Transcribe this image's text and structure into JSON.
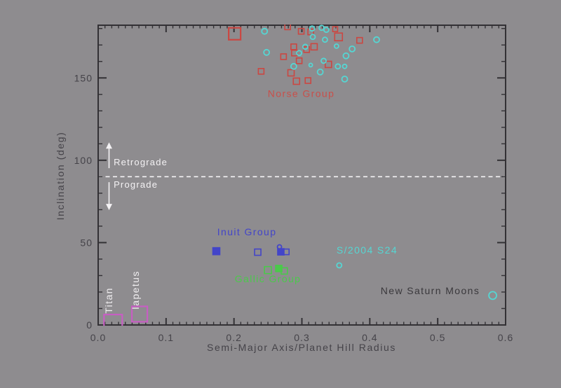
{
  "figure": {
    "background": "#8e8c8f",
    "frame_color": "#333135",
    "text_color": "#454349"
  },
  "chart_data": {
    "type": "scatter",
    "title": "",
    "xlabel": "Semi-Major Axis/Planet Hill Radius",
    "ylabel": "Inclination (deg)",
    "xlim": [
      0,
      0.6
    ],
    "ylim": [
      0,
      182
    ],
    "grid": false,
    "legend_position": "none",
    "x_major_ticks": [
      0,
      0.1,
      0.2,
      0.3,
      0.4,
      0.5,
      0.6
    ],
    "x_tick_labels": [
      "0.0",
      "0.1",
      "0.2",
      "0.3",
      "0.4",
      "0.5",
      "0.6"
    ],
    "x_minor_step": 0.01,
    "y_major_ticks": [
      0,
      50,
      100,
      150
    ],
    "y_tick_labels": [
      "0",
      "50",
      "100",
      "150"
    ],
    "y_minor_step": 10,
    "reference_line": {
      "y": 90,
      "style": "dashed",
      "color": "#f4f2f4",
      "label": "prograde/retrograde boundary"
    },
    "direction_arrows": [
      {
        "id": "retrograde-arrow",
        "x": 0.016,
        "y_tail": 95.2,
        "y_head": 110.9,
        "head": "up",
        "color": "#f4f2f4"
      },
      {
        "id": "prograde-arrow",
        "x": 0.016,
        "y_tail": 86.7,
        "y_head": 69.7,
        "head": "down",
        "color": "#f4f2f4"
      }
    ],
    "annotations": [
      {
        "id": "norse-group-label",
        "text": "Norse Group",
        "x": 0.299,
        "y": 138.5,
        "color": "#c94f4a",
        "anchor": "middle",
        "rotate": 0,
        "size": 14
      },
      {
        "id": "inuit-group-label",
        "text": "Inuit Group",
        "x": 0.219,
        "y": 54.4,
        "color": "#4345c9",
        "anchor": "middle",
        "rotate": 0,
        "size": 14
      },
      {
        "id": "gallic-group-label",
        "text": "Gallic Group",
        "x": 0.25,
        "y": 25.9,
        "color": "#4bc94b",
        "anchor": "middle",
        "rotate": 0,
        "size": 14
      },
      {
        "id": "s2004-s24-label",
        "text": "S/2004 S24",
        "x": 0.396,
        "y": 43.3,
        "color": "#55d6d3",
        "anchor": "middle",
        "rotate": 0,
        "size": 14
      },
      {
        "id": "new-saturn-moons-label",
        "text": "New Saturn Moons",
        "x": 0.489,
        "y": 18.7,
        "color": "#3a383c",
        "anchor": "middle",
        "rotate": 0,
        "size": 14
      },
      {
        "id": "retrograde-label",
        "text": "Retrograde",
        "x": 0.0228,
        "y": 96.9,
        "color": "#f4f2f4",
        "anchor": "start",
        "rotate": 0,
        "size": 13
      },
      {
        "id": "prograde-label",
        "text": "Prograde",
        "x": 0.0228,
        "y": 83.3,
        "color": "#f4f2f4",
        "anchor": "start",
        "rotate": 0,
        "size": 13
      },
      {
        "id": "titan-label",
        "text": "Titan",
        "x": 0.0207,
        "y": 14.9,
        "color": "#f0eef0",
        "anchor": "middle",
        "rotate": -90,
        "size": 13
      },
      {
        "id": "iapetus-label",
        "text": "Iapetus",
        "x": 0.06,
        "y": 21.2,
        "color": "#f0eef0",
        "anchor": "middle",
        "rotate": -90,
        "size": 13
      }
    ],
    "series": [
      {
        "id": "norse-group-squares",
        "name": "Norse Group (red squares, retrograde irregulars)",
        "symbol": "square",
        "filled": false,
        "color": "#cb4742",
        "points": [
          [
            0.201,
            176.8,
            17
          ],
          [
            0.279,
            181.0,
            8
          ],
          [
            0.299,
            178.3,
            8
          ],
          [
            0.313,
            177.9,
            8
          ],
          [
            0.349,
            179.6,
            7
          ],
          [
            0.354,
            174.9,
            11
          ],
          [
            0.385,
            172.8,
            8
          ],
          [
            0.288,
            168.9,
            8
          ],
          [
            0.307,
            167.2,
            8
          ],
          [
            0.318,
            168.9,
            9
          ],
          [
            0.289,
            165.1,
            8
          ],
          [
            0.273,
            162.9,
            8
          ],
          [
            0.296,
            160.4,
            8
          ],
          [
            0.339,
            158.2,
            9
          ],
          [
            0.24,
            154.0,
            8
          ],
          [
            0.284,
            153.1,
            9
          ],
          [
            0.292,
            148.0,
            9
          ],
          [
            0.309,
            148.4,
            8
          ]
        ]
      },
      {
        "id": "norse-group-circles",
        "name": "Norse Group (cyan circles, retrograde irregulars)",
        "symbol": "circle",
        "filled": false,
        "color": "#55d6d3",
        "points": [
          [
            0.245,
            178.3,
            8
          ],
          [
            0.315,
            180.0,
            7
          ],
          [
            0.329,
            180.4,
            7
          ],
          [
            0.336,
            179.2,
            7
          ],
          [
            0.316,
            174.9,
            7
          ],
          [
            0.334,
            173.2,
            7
          ],
          [
            0.41,
            173.2,
            8
          ],
          [
            0.248,
            165.5,
            8
          ],
          [
            0.305,
            168.9,
            7
          ],
          [
            0.296,
            165.1,
            7
          ],
          [
            0.374,
            167.6,
            8
          ],
          [
            0.351,
            169.3,
            6
          ],
          [
            0.365,
            163.4,
            8
          ],
          [
            0.288,
            157.0,
            8
          ],
          [
            0.332,
            160.4,
            7
          ],
          [
            0.313,
            157.8,
            5
          ],
          [
            0.353,
            157.0,
            7
          ],
          [
            0.363,
            157.0,
            6
          ],
          [
            0.327,
            153.6,
            8
          ],
          [
            0.363,
            149.3,
            8
          ]
        ]
      },
      {
        "id": "inuit-group-open-squares",
        "name": "Inuit Group (open squares)",
        "symbol": "square",
        "filled": false,
        "color": "#4345c9",
        "points": [
          [
            0.235,
            44.2,
            9
          ],
          [
            0.277,
            44.4,
            8
          ]
        ]
      },
      {
        "id": "inuit-group-filled-squares",
        "name": "Inuit Group (filled squares)",
        "symbol": "square",
        "filled": true,
        "color": "#4345c9",
        "points": [
          [
            0.174,
            44.8,
            10
          ],
          [
            0.269,
            44.4,
            9
          ]
        ]
      },
      {
        "id": "inuit-group-circle",
        "name": "Inuit Group (small circle)",
        "symbol": "circle",
        "filled": false,
        "color": "#4345c9",
        "points": [
          [
            0.267,
            47.4,
            6
          ]
        ]
      },
      {
        "id": "gallic-group-open-squares",
        "name": "Gallic Group (open squares)",
        "symbol": "square",
        "filled": false,
        "color": "#4bc94b",
        "points": [
          [
            0.25,
            33.3,
            10
          ],
          [
            0.274,
            32.8,
            9
          ]
        ]
      },
      {
        "id": "gallic-group-filled-square",
        "name": "Gallic Group (filled square)",
        "symbol": "square",
        "filled": true,
        "color": "#4bc94b",
        "points": [
          [
            0.266,
            34.3,
            9
          ]
        ]
      },
      {
        "id": "s2004-s24-point",
        "name": "S/2004 S24",
        "symbol": "circle",
        "filled": false,
        "color": "#55d6d3",
        "points": [
          [
            0.355,
            36.2,
            7
          ]
        ]
      },
      {
        "id": "new-saturn-moons-point",
        "name": "New Saturn Moons",
        "symbol": "circle",
        "filled": false,
        "color": "#55d6d3",
        "points": [
          [
            0.581,
            17.9,
            11
          ]
        ]
      },
      {
        "id": "titan-point",
        "name": "Titan",
        "symbol": "square",
        "filled": false,
        "color": "#c75ec3",
        "points": [
          [
            0.022,
            0.8,
            26
          ]
        ]
      },
      {
        "id": "iapetus-point",
        "name": "Iapetus",
        "symbol": "square",
        "filled": false,
        "color": "#c75ec3",
        "points": [
          [
            0.061,
            6.6,
            22
          ]
        ]
      }
    ]
  }
}
